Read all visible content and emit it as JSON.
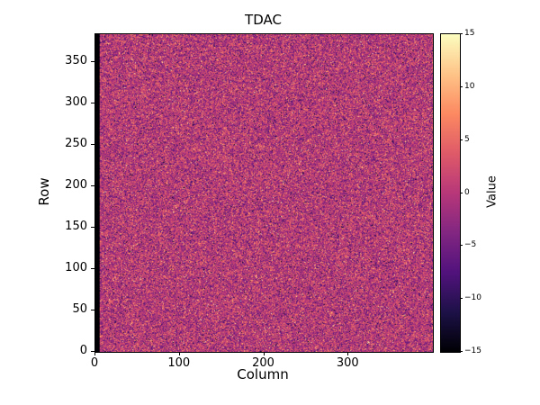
{
  "chart_data": {
    "type": "heatmap",
    "title": "TDAC",
    "xlabel": "Column",
    "ylabel": "Row",
    "colorbar_label": "Value",
    "cols": 400,
    "rows": 384,
    "xlim": [
      0,
      400
    ],
    "ylim": [
      0,
      384
    ],
    "vmin": -15,
    "vmax": 15,
    "x_ticks": [
      0,
      100,
      200,
      300
    ],
    "y_ticks": [
      0,
      50,
      100,
      150,
      200,
      250,
      300,
      350
    ],
    "colorbar_ticks": [
      15,
      10,
      5,
      0,
      -5,
      -10,
      -15
    ],
    "colormap": "magma",
    "colormap_anchors": [
      "#000004",
      "#1d1147",
      "#51127c",
      "#822681",
      "#b73779",
      "#df5a68",
      "#fc8961",
      "#fec488",
      "#fcfdbf"
    ],
    "background": "#ffffff",
    "data_description": "Dense random speckle noise centered near value 0 (magenta), occasional bright and dark outliers; leftmost few columns at minimum value (black stripe)",
    "noise": {
      "mean": 0,
      "std": 4,
      "outlier_fraction": 0.03,
      "seed": 42,
      "black_left_columns": 5
    }
  }
}
